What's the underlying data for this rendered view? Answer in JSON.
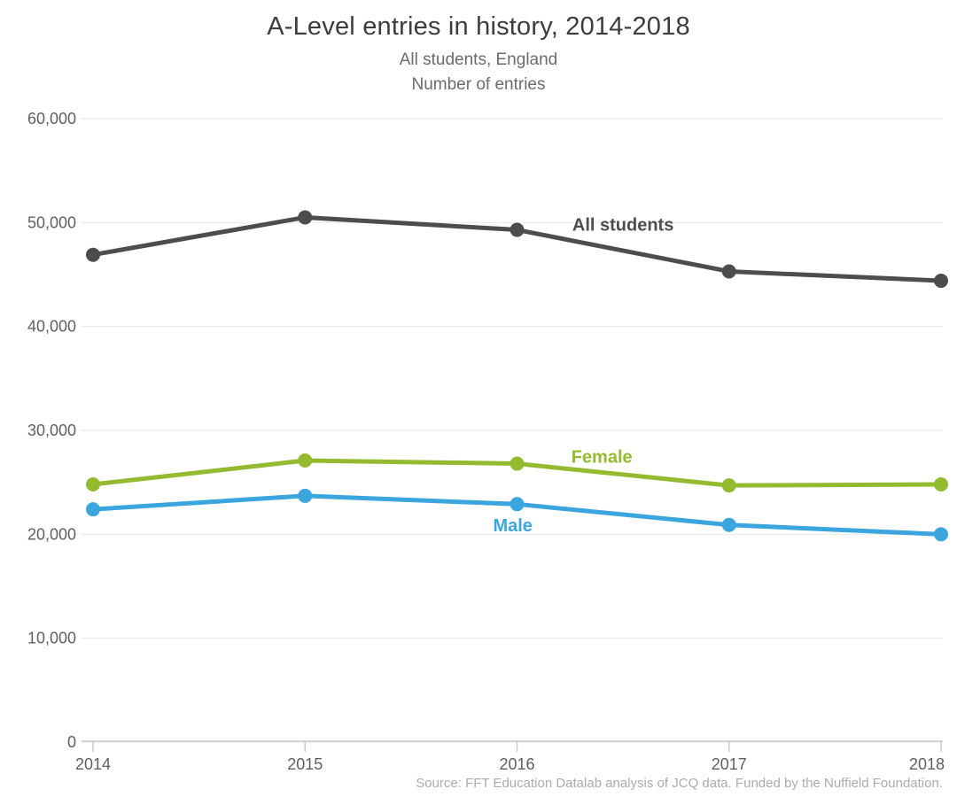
{
  "header": {
    "title": "A-Level entries in history, 2014-2018",
    "subtitle": "All students, England",
    "axis_note": "Number of entries"
  },
  "footer": {
    "source": "Source: FFT Education Datalab analysis of JCQ data. Funded by the Nuffield Foundation."
  },
  "colors": {
    "all_students": "#4d4d4d",
    "female": "#94bb2f",
    "male": "#3ba6dd",
    "gridline": "#e9e9e9",
    "axis": "#c9c9c9",
    "tick_label": "#5f5f5f",
    "source_text": "#ababab"
  },
  "chart_data": {
    "type": "line",
    "title": "A-Level entries in history, 2014-2018",
    "subtitle": "All students, England",
    "ylabel": "Number of entries",
    "xlabel": "",
    "source": "Source: FFT Education Datalab analysis of JCQ data. Funded by the Nuffield Foundation.",
    "x": [
      2014,
      2015,
      2016,
      2017,
      2018
    ],
    "x_tick_labels": [
      "2014",
      "2015",
      "2016",
      "2017",
      "2018"
    ],
    "ylim": [
      0,
      60000
    ],
    "y_ticks": [
      {
        "value": 0,
        "label": "0"
      },
      {
        "value": 10000,
        "label": "10,000"
      },
      {
        "value": 20000,
        "label": "20,000"
      },
      {
        "value": 30000,
        "label": "30,000"
      },
      {
        "value": 40000,
        "label": "40,000"
      },
      {
        "value": 50000,
        "label": "50,000"
      },
      {
        "value": 60000,
        "label": "60,000"
      }
    ],
    "grid": "horizontal",
    "legend": "inline-labels",
    "series": [
      {
        "name": "All students",
        "color": "#4d4d4d",
        "values": [
          46900,
          50500,
          49300,
          45300,
          44400
        ],
        "label": {
          "x": 2016.5,
          "y": 49800
        }
      },
      {
        "name": "Female",
        "color": "#94bb2f",
        "values": [
          24800,
          27100,
          26800,
          24700,
          24800
        ],
        "label": {
          "x": 2016.4,
          "y": 27500
        }
      },
      {
        "name": "Male",
        "color": "#3ba6dd",
        "values": [
          22400,
          23700,
          22900,
          20900,
          20000
        ],
        "label": {
          "x": 2015.98,
          "y": 20900
        }
      }
    ]
  }
}
